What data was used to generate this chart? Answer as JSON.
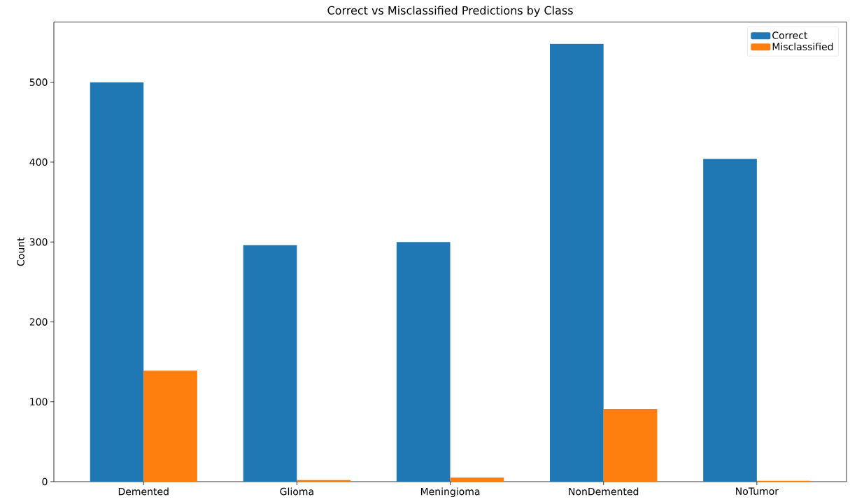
{
  "chart_data": {
    "type": "bar",
    "title": "Correct vs Misclassified Predictions by Class",
    "ylabel": "Count",
    "categories": [
      "Demented",
      "Glioma",
      "Meningioma",
      "NonDemented",
      "NoTumor"
    ],
    "series": [
      {
        "name": "Correct",
        "color": "#1f77b4",
        "values": [
          500,
          296,
          300,
          548,
          404
        ]
      },
      {
        "name": "Misclassified",
        "color": "#ff7f0e",
        "values": [
          139,
          2,
          5,
          91,
          1
        ]
      }
    ],
    "ylim": [
      0,
      575.4
    ],
    "yticks": [
      0,
      100,
      200,
      300,
      400,
      500
    ],
    "grid": false,
    "legend": "top right"
  }
}
